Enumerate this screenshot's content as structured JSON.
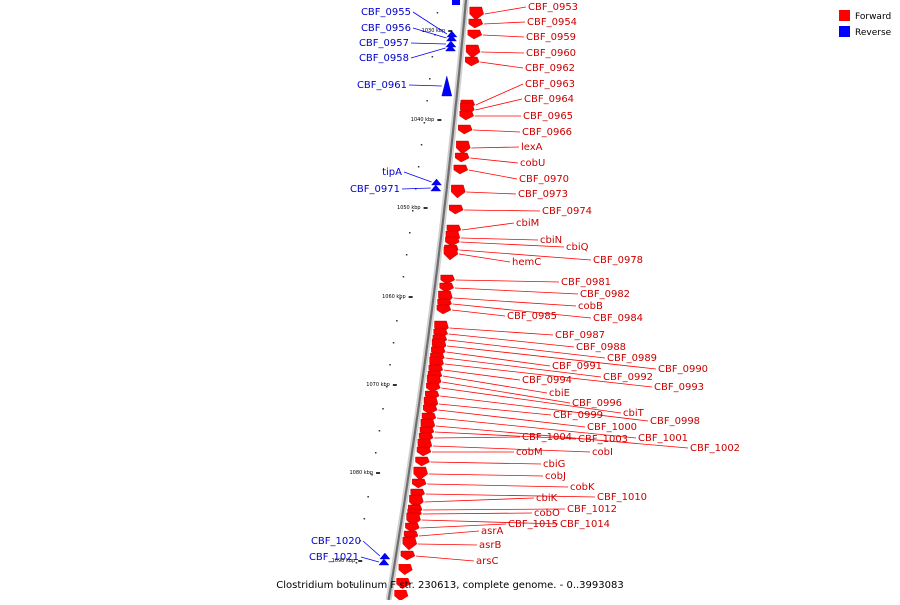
{
  "title": "Clostridium botulinum F str. 230613, complete genome. - 0..3993083",
  "legend": {
    "forward_label": "Forward",
    "reverse_label": "Reverse",
    "forward_color": "#ff0000",
    "reverse_color": "#0000ff"
  },
  "ticks": [
    "1030 kbp",
    "1040 kbp",
    "1050 kbp",
    "1060 kbp",
    "1070 kbp",
    "1080 kbp",
    "1090 kbp"
  ],
  "forward_genes": [
    "CBF_0953",
    "CBF_0954",
    "CBF_0959",
    "CBF_0960",
    "CBF_0962",
    "CBF_0963",
    "CBF_0964",
    "CBF_0965",
    "CBF_0966",
    "lexA",
    "cobU",
    "CBF_0970",
    "CBF_0973",
    "CBF_0974",
    "cbiM",
    "cbiN",
    "cbiQ",
    "CBF_0978",
    "hemC",
    "CBF_0981",
    "CBF_0982",
    "cobB",
    "CBF_0984",
    "CBF_0985",
    "CBF_0987",
    "CBF_0988",
    "CBF_0989",
    "CBF_0990",
    "CBF_0991",
    "CBF_0992",
    "CBF_0993",
    "CBF_0994",
    "cbiE",
    "CBF_0996",
    "cbiT",
    "CBF_0998",
    "CBF_0999",
    "CBF_1000",
    "CBF_1001",
    "CBF_1002",
    "CBF_1003",
    "CBF_1004",
    "cobI",
    "cobM",
    "cbiG",
    "cobJ",
    "cobK",
    "CBF_1010",
    "cbiK",
    "CBF_1012",
    "cobO",
    "CBF_1014",
    "CBF_1015",
    "asrA",
    "asrB",
    "arsC"
  ],
  "reverse_genes": [
    "CBF_0955",
    "CBF_0956",
    "CBF_0957",
    "CBF_0958",
    "CBF_0961",
    "tipA",
    "CBF_0971",
    "CBF_1020",
    "CBF_1021"
  ]
}
